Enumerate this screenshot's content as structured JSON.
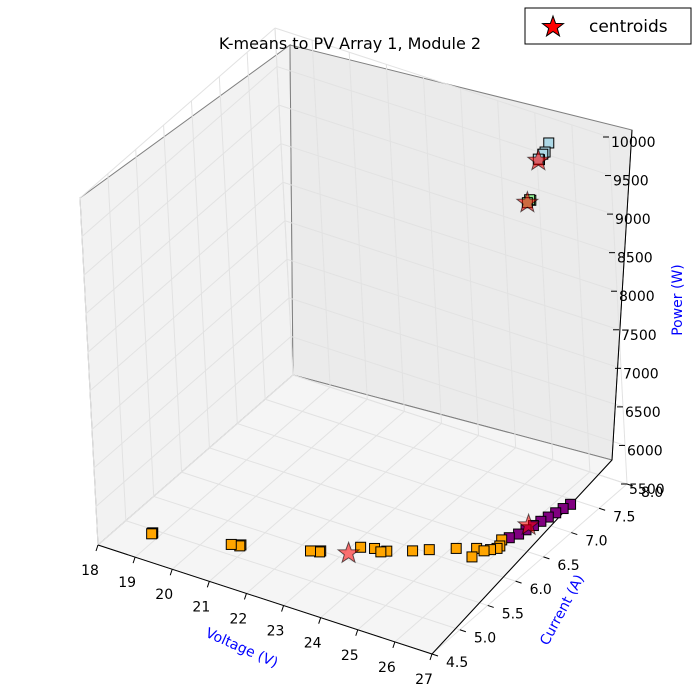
{
  "chart_data": {
    "type": "scatter",
    "title": "K-means to PV Array 1, Module 2",
    "xlabel": "Voltage (V)",
    "ylabel": "Current (A)",
    "zlabel": "Power (W)",
    "xlim": [
      18,
      27
    ],
    "ylim": [
      4.5,
      8.0
    ],
    "zlim": [
      5500,
      10000
    ],
    "x_ticks": [
      "18",
      "19",
      "20",
      "21",
      "22",
      "23",
      "24",
      "25",
      "26",
      "27"
    ],
    "y_ticks": [
      "4.5",
      "5.0",
      "5.5",
      "6.0",
      "6.5",
      "7.0",
      "7.5",
      "8.0"
    ],
    "z_ticks": [
      "5500",
      "6000",
      "6500",
      "7000",
      "7500",
      "8000",
      "8500",
      "9000",
      "9500",
      "10000"
    ],
    "grid": true,
    "legend": {
      "position": "top-right",
      "entries": [
        "centroids"
      ]
    },
    "colors": {
      "orange": "#ffa500",
      "purple": "#800080",
      "lightblue": "#add8e6",
      "lightgreen": "#90ee90",
      "centroid": "#ff0000"
    },
    "series": [
      {
        "color": "orange",
        "points": [
          [
            18.8,
            4.93,
            5500
          ],
          [
            18.8,
            4.94,
            5500
          ],
          [
            18.8,
            4.95,
            5500
          ],
          [
            20.6,
            5.16,
            5500
          ],
          [
            20.8,
            5.18,
            5500
          ],
          [
            20.8,
            5.2,
            5500
          ],
          [
            22.3,
            5.45,
            5500
          ],
          [
            22.5,
            5.48,
            5500
          ],
          [
            22.5,
            5.5,
            5500
          ],
          [
            23.2,
            5.75,
            5500
          ],
          [
            23.5,
            5.8,
            5500
          ],
          [
            23.7,
            5.78,
            5500
          ],
          [
            23.8,
            5.82,
            5500
          ],
          [
            24.3,
            5.95,
            5500
          ],
          [
            24.6,
            6.05,
            5500
          ],
          [
            25.1,
            6.2,
            5500
          ],
          [
            25.5,
            6.3,
            5500
          ],
          [
            25.9,
            6.45,
            5500
          ],
          [
            25.9,
            6.4,
            5500
          ],
          [
            25.8,
            6.35,
            5500
          ],
          [
            25.7,
            6.3,
            5500
          ],
          [
            25.6,
            6.15,
            5500
          ],
          [
            25.8,
            6.55,
            5500
          ]
        ]
      },
      {
        "color": "purple",
        "points": [
          [
            25.9,
            6.62,
            5500
          ],
          [
            26.0,
            6.72,
            5500
          ],
          [
            26.05,
            6.82,
            5500
          ],
          [
            26.1,
            6.92,
            5500
          ],
          [
            26.15,
            7.02,
            5500
          ],
          [
            26.2,
            7.12,
            5500
          ],
          [
            26.25,
            7.22,
            5500
          ],
          [
            26.3,
            7.32,
            5500
          ],
          [
            26.35,
            7.42,
            5500
          ]
        ]
      },
      {
        "color": "lightblue",
        "points": [
          [
            25.5,
            7.9,
            9750
          ],
          [
            25.45,
            7.86,
            9650
          ],
          [
            25.4,
            7.85,
            9620
          ],
          [
            25.35,
            7.8,
            9580
          ],
          [
            25.35,
            7.82,
            9560
          ]
        ]
      },
      {
        "color": "lightgreen",
        "points": [
          [
            25.15,
            7.74,
            9060
          ],
          [
            25.15,
            7.76,
            9040
          ],
          [
            25.1,
            7.73,
            9020
          ]
        ]
      }
    ],
    "centroids": [
      [
        23.1,
        5.6,
        5500
      ],
      [
        26.0,
        6.9,
        5500
      ],
      [
        25.35,
        7.8,
        9560
      ],
      [
        25.1,
        7.73,
        9020
      ]
    ]
  }
}
